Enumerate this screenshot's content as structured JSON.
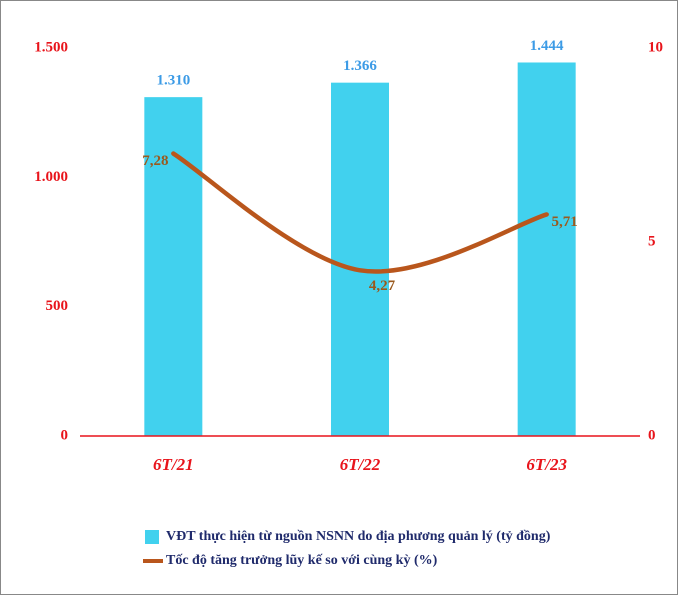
{
  "chart_data": {
    "type": "bar-line",
    "categories": [
      "6T/21",
      "6T/22",
      "6T/23"
    ],
    "series": [
      {
        "name": "VĐT thực hiện từ nguồn NSNN do địa phương quản lý (tỷ đồng)",
        "type": "bar",
        "color": "#41d1ee",
        "values": [
          1310,
          1366,
          1444
        ],
        "value_labels": [
          "1.310",
          "1.366",
          "1.444"
        ]
      },
      {
        "name": "Tốc độ tăng trưởng lũy kế so với cùng kỳ (%)",
        "type": "line",
        "axis": "y2",
        "color": "#b9561c",
        "values": [
          7.28,
          4.27,
          5.71
        ],
        "value_labels": [
          "7,28",
          "4,27",
          "5,71"
        ]
      }
    ],
    "ylim": [
      0,
      1500
    ],
    "yticks": [
      0,
      500,
      {
        "value": 1000,
        "label": "1.000"
      },
      {
        "value": 1500,
        "label": "1.500"
      }
    ],
    "y2lim": [
      0,
      10
    ],
    "y2ticks": [
      0,
      5,
      10
    ],
    "grid": false,
    "legend": "bottom"
  }
}
